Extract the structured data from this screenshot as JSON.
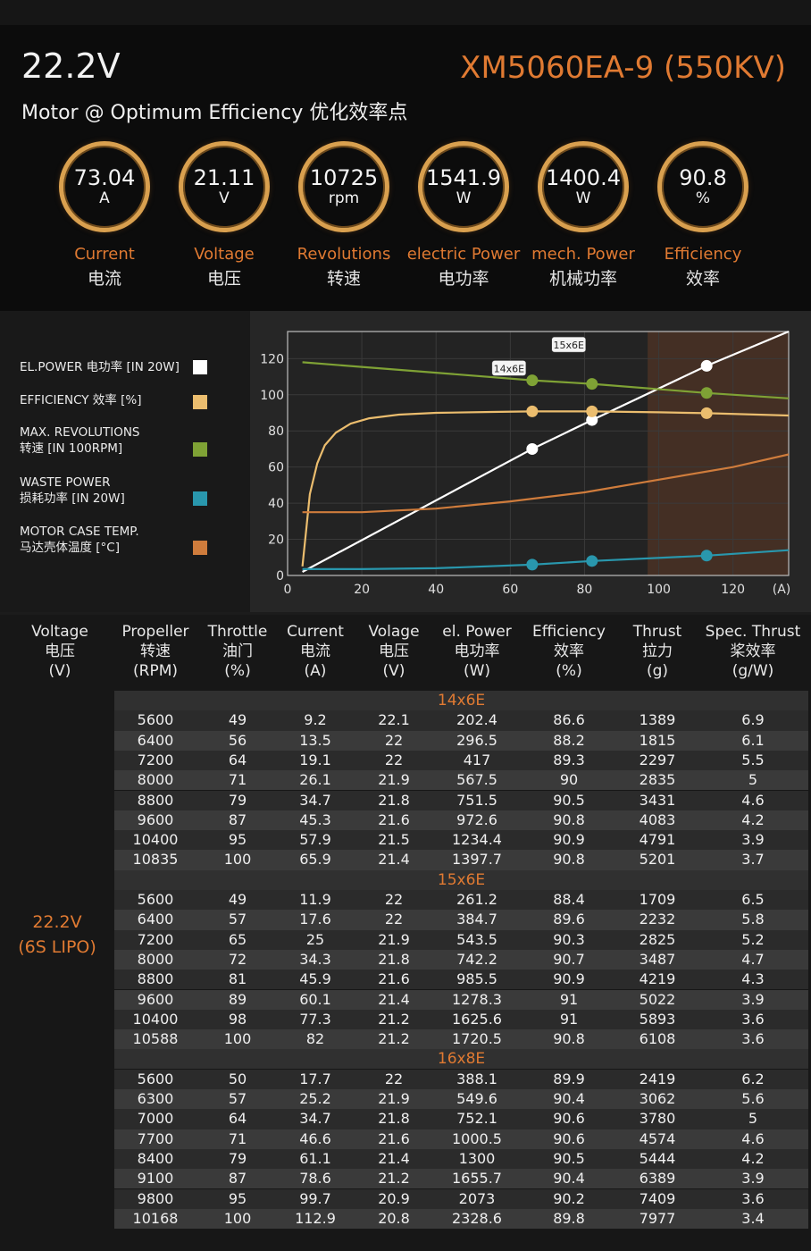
{
  "header": {
    "voltage": "22.2V",
    "model": "XM5060EA-9 (550KV)",
    "subtitle": "Motor @ Optimum Efficiency  优化效率点"
  },
  "metrics": [
    {
      "value": "73.04",
      "unit": "A",
      "en": "Current",
      "cn": "电流"
    },
    {
      "value": "21.11",
      "unit": "V",
      "en": "Voltage",
      "cn": "电压"
    },
    {
      "value": "10725",
      "unit": "rpm",
      "en": "Revolutions",
      "cn": "转速"
    },
    {
      "value": "1541.9",
      "unit": "W",
      "en": "electric Power",
      "cn": "电功率"
    },
    {
      "value": "1400.4",
      "unit": "W",
      "en": "mech. Power",
      "cn": "机械功率"
    },
    {
      "value": "90.8",
      "unit": "%",
      "en": "Efficiency",
      "cn": "效率"
    }
  ],
  "legend": [
    {
      "line1": "EL.POWER 电功率 [IN 20W]",
      "line2": "",
      "color": "#ffffff"
    },
    {
      "line1": "EFFICIENCY 效率 [%]",
      "line2": "",
      "color": "#ebbd6e"
    },
    {
      "line1": "MAX. REVOLUTIONS",
      "line2": "转速 [IN 100RPM]",
      "color": "#7fa235"
    },
    {
      "line1": "WASTE POWER",
      "line2": "损耗功率 [IN 20W]",
      "color": "#2997ad"
    },
    {
      "line1": "MOTOR CASE TEMP.",
      "line2": "马达壳体温度 [°C]",
      "color": "#cf7c3c"
    }
  ],
  "chart_data": {
    "type": "line",
    "xlabel": "(A)",
    "xlim": [
      0,
      135
    ],
    "ylim": [
      0,
      135
    ],
    "xticks": [
      0,
      20,
      40,
      60,
      80,
      100,
      120
    ],
    "yticks": [
      0,
      20,
      40,
      60,
      80,
      100,
      120
    ],
    "shaded_region": {
      "x_start": 97,
      "x_end": 135
    },
    "props": [
      {
        "label": "14x6E",
        "x": 65.9
      },
      {
        "label": "15x6E",
        "x": 82
      },
      {
        "label": "16x8E",
        "x": 112.9
      }
    ],
    "series": [
      {
        "name": "EL.POWER 电功率 [IN 20W]",
        "color": "#ffffff",
        "x": [
          4,
          65.9,
          82,
          112.9,
          135
        ],
        "y": [
          2,
          70,
          86,
          116,
          137
        ],
        "markers": [
          65.9,
          82,
          112.9
        ]
      },
      {
        "name": "EFFICIENCY 效率 [%]",
        "color": "#ebbd6e",
        "x": [
          4,
          5,
          6,
          8,
          10,
          13,
          17,
          22,
          30,
          40,
          55,
          65.9,
          82,
          100,
          112.9,
          135
        ],
        "y": [
          5,
          25,
          45,
          62,
          72,
          79,
          84,
          87,
          89,
          90,
          90.5,
          90.8,
          90.8,
          90.3,
          89.8,
          88.5
        ],
        "markers": [
          65.9,
          82,
          112.9
        ]
      },
      {
        "name": "MAX. REVOLUTIONS 转速 [IN 100RPM]",
        "color": "#7fa235",
        "x": [
          4,
          65.9,
          82,
          112.9,
          135
        ],
        "y": [
          118,
          108,
          106,
          101,
          98
        ],
        "markers": [
          65.9,
          82,
          112.9
        ]
      },
      {
        "name": "WASTE POWER 损耗功率 [IN 20W]",
        "color": "#2997ad",
        "x": [
          4,
          20,
          40,
          65.9,
          82,
          112.9,
          135
        ],
        "y": [
          3.5,
          3.5,
          4,
          6,
          8,
          11,
          14
        ],
        "markers": [
          65.9,
          82,
          112.9
        ]
      },
      {
        "name": "MOTOR CASE TEMP. 马达壳体温度 [°C]",
        "color": "#cf7c3c",
        "x": [
          4,
          20,
          40,
          60,
          80,
          100,
          120,
          135
        ],
        "y": [
          35,
          35,
          37,
          41,
          46,
          53,
          60,
          67
        ],
        "markers": []
      }
    ]
  },
  "table": {
    "voltage_label": [
      "22.2V",
      "(6S LIPO)"
    ],
    "headers": [
      [
        "Voltage",
        "电压",
        "(V)"
      ],
      [
        "Propeller",
        "转速",
        "(RPM)"
      ],
      [
        "Throttle",
        "油门",
        "(%)"
      ],
      [
        "Current",
        "电流",
        "(A)"
      ],
      [
        "Volage",
        "电压",
        "(V)"
      ],
      [
        "el. Power",
        "电功率",
        "(W)"
      ],
      [
        "Efficiency",
        "效率",
        "(%)"
      ],
      [
        "Thrust",
        "拉力",
        "(g)"
      ],
      [
        "Spec. Thrust",
        "桨效率",
        "(g/W)"
      ]
    ],
    "groups": [
      {
        "name": "14x6E",
        "rows": [
          [
            "5600",
            "49",
            "9.2",
            "22.1",
            "202.4",
            "86.6",
            "1389",
            "6.9"
          ],
          [
            "6400",
            "56",
            "13.5",
            "22",
            "296.5",
            "88.2",
            "1815",
            "6.1"
          ],
          [
            "7200",
            "64",
            "19.1",
            "22",
            "417",
            "89.3",
            "2297",
            "5.5"
          ],
          [
            "8000",
            "71",
            "26.1",
            "21.9",
            "567.5",
            "90",
            "2835",
            "5"
          ],
          [
            "8800",
            "79",
            "34.7",
            "21.8",
            "751.5",
            "90.5",
            "3431",
            "4.6"
          ],
          [
            "9600",
            "87",
            "45.3",
            "21.6",
            "972.6",
            "90.8",
            "4083",
            "4.2"
          ],
          [
            "10400",
            "95",
            "57.9",
            "21.5",
            "1234.4",
            "90.9",
            "4791",
            "3.9"
          ],
          [
            "10835",
            "100",
            "65.9",
            "21.4",
            "1397.7",
            "90.8",
            "5201",
            "3.7"
          ]
        ]
      },
      {
        "name": "15x6E",
        "rows": [
          [
            "5600",
            "49",
            "11.9",
            "22",
            "261.2",
            "88.4",
            "1709",
            "6.5"
          ],
          [
            "6400",
            "57",
            "17.6",
            "22",
            "384.7",
            "89.6",
            "2232",
            "5.8"
          ],
          [
            "7200",
            "65",
            "25",
            "21.9",
            "543.5",
            "90.3",
            "2825",
            "5.2"
          ],
          [
            "8000",
            "72",
            "34.3",
            "21.8",
            "742.2",
            "90.7",
            "3487",
            "4.7"
          ],
          [
            "8800",
            "81",
            "45.9",
            "21.6",
            "985.5",
            "90.9",
            "4219",
            "4.3"
          ],
          [
            "9600",
            "89",
            "60.1",
            "21.4",
            "1278.3",
            "91",
            "5022",
            "3.9"
          ],
          [
            "10400",
            "98",
            "77.3",
            "21.2",
            "1625.6",
            "91",
            "5893",
            "3.6"
          ],
          [
            "10588",
            "100",
            "82",
            "21.2",
            "1720.5",
            "90.8",
            "6108",
            "3.6"
          ]
        ]
      },
      {
        "name": "16x8E",
        "rows": [
          [
            "5600",
            "50",
            "17.7",
            "22",
            "388.1",
            "89.9",
            "2419",
            "6.2"
          ],
          [
            "6300",
            "57",
            "25.2",
            "21.9",
            "549.6",
            "90.4",
            "3062",
            "5.6"
          ],
          [
            "7000",
            "64",
            "34.7",
            "21.8",
            "752.1",
            "90.6",
            "3780",
            "5"
          ],
          [
            "7700",
            "71",
            "46.6",
            "21.6",
            "1000.5",
            "90.6",
            "4574",
            "4.6"
          ],
          [
            "8400",
            "79",
            "61.1",
            "21.4",
            "1300",
            "90.5",
            "5444",
            "4.2"
          ],
          [
            "9100",
            "87",
            "78.6",
            "21.2",
            "1655.7",
            "90.4",
            "6389",
            "3.9"
          ],
          [
            "9800",
            "95",
            "99.7",
            "20.9",
            "2073",
            "90.2",
            "7409",
            "3.6"
          ],
          [
            "10168",
            "100",
            "112.9",
            "20.8",
            "2328.6",
            "89.8",
            "7977",
            "3.4"
          ]
        ]
      }
    ]
  }
}
